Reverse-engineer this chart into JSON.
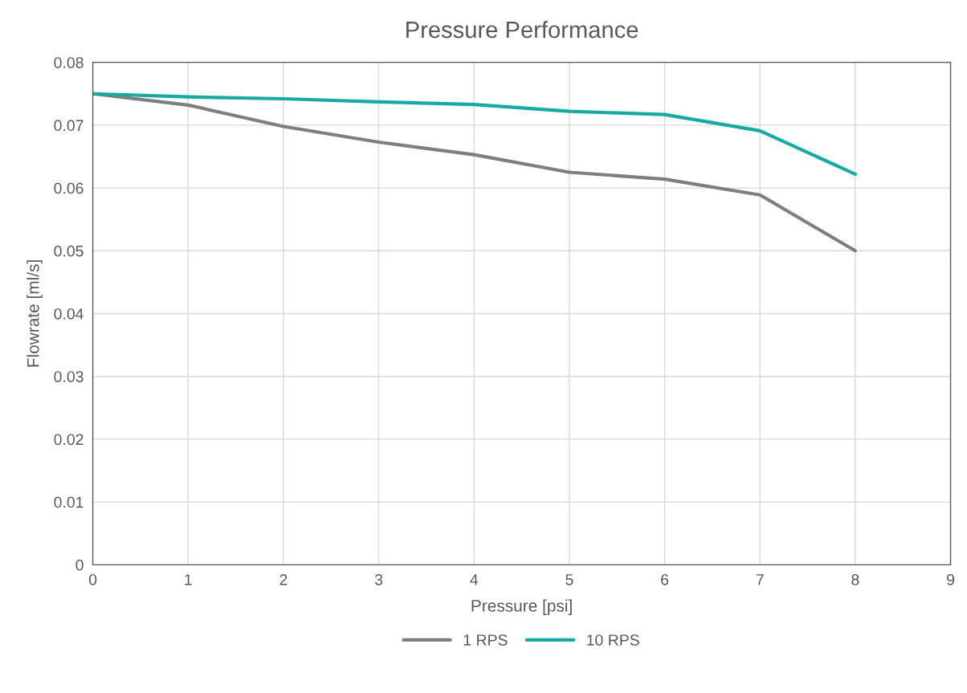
{
  "chart_data": {
    "type": "line",
    "title": "Pressure Performance",
    "xlabel": "Pressure [psi]",
    "ylabel": "Flowrate [ml/s]",
    "x": [
      0,
      1,
      2,
      3,
      4,
      5,
      6,
      7,
      8
    ],
    "series": [
      {
        "name": "1 RPS",
        "color": "#7f7f7f",
        "values": [
          0.075,
          0.0732,
          0.0698,
          0.0673,
          0.0653,
          0.0625,
          0.0614,
          0.0589,
          0.05
        ]
      },
      {
        "name": "10 RPS",
        "color": "#17a9a3",
        "values": [
          0.075,
          0.0745,
          0.0742,
          0.0737,
          0.0733,
          0.0722,
          0.0717,
          0.0691,
          0.0622
        ]
      }
    ],
    "xlim": [
      0,
      9
    ],
    "xticks": [
      0,
      1,
      2,
      3,
      4,
      5,
      6,
      7,
      8,
      9
    ],
    "ylim": [
      0,
      0.08
    ],
    "yticks": [
      0,
      0.01,
      0.02,
      0.03,
      0.04,
      0.05,
      0.06,
      0.07,
      0.08
    ],
    "grid": true,
    "legend": "bottom",
    "marker": "none",
    "line_style": "solid"
  }
}
